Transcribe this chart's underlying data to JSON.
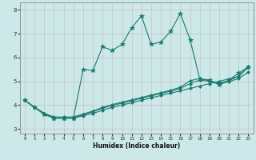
{
  "xlabel": "Humidex (Indice chaleur)",
  "bg_color": "#cce8e8",
  "grid_color_major": "#aacccc",
  "grid_color_minor": "#bcd8d8",
  "line_color": "#1a7a6e",
  "xlim": [
    -0.5,
    23.5
  ],
  "ylim": [
    2.8,
    8.3
  ],
  "xticks": [
    0,
    1,
    2,
    3,
    4,
    5,
    6,
    7,
    8,
    9,
    10,
    11,
    12,
    13,
    14,
    15,
    16,
    17,
    18,
    19,
    20,
    21,
    22,
    23
  ],
  "yticks": [
    3,
    4,
    5,
    6,
    7,
    8
  ],
  "curves": [
    {
      "x": [
        0,
        1,
        2,
        3,
        4,
        5,
        6,
        7,
        8,
        9,
        10,
        11,
        12,
        13,
        14,
        15,
        16,
        17,
        18,
        19,
        20,
        21,
        22,
        23
      ],
      "y": [
        4.2,
        3.9,
        3.6,
        3.45,
        3.45,
        3.45,
        5.5,
        5.45,
        6.45,
        6.3,
        6.55,
        7.25,
        7.75,
        6.55,
        6.65,
        7.1,
        7.85,
        6.75,
        5.1,
        5.05,
        4.85,
        5.05,
        5.35,
        5.6
      ],
      "marker": "*",
      "ms": 4
    },
    {
      "x": [
        0,
        1,
        2,
        3,
        4,
        5,
        6,
        7,
        8,
        9,
        10,
        11,
        12,
        13,
        14,
        15,
        16,
        17,
        18,
        19,
        20,
        21,
        22,
        23
      ],
      "y": [
        4.2,
        3.9,
        3.65,
        3.45,
        3.45,
        3.45,
        3.55,
        3.65,
        3.78,
        3.9,
        4.0,
        4.1,
        4.2,
        4.3,
        4.4,
        4.5,
        4.6,
        4.7,
        4.8,
        4.9,
        5.0,
        5.1,
        5.2,
        5.6
      ],
      "marker": "D",
      "ms": 2
    },
    {
      "x": [
        0,
        1,
        2,
        3,
        4,
        5,
        6,
        7,
        8,
        9,
        10,
        11,
        12,
        13,
        14,
        15,
        16,
        17,
        18,
        19,
        20,
        21,
        22,
        23
      ],
      "y": [
        4.2,
        3.9,
        3.65,
        3.45,
        3.45,
        3.45,
        3.6,
        3.72,
        3.87,
        3.98,
        4.08,
        4.18,
        4.28,
        4.38,
        4.48,
        4.58,
        4.7,
        4.9,
        5.05,
        5.0,
        4.88,
        4.98,
        5.12,
        5.38
      ],
      "marker": "D",
      "ms": 2
    },
    {
      "x": [
        0,
        1,
        2,
        3,
        4,
        5,
        6,
        7,
        8,
        9,
        10,
        11,
        12,
        13,
        14,
        15,
        16,
        17,
        18,
        19,
        20,
        21,
        22,
        23
      ],
      "y": [
        4.2,
        3.9,
        3.65,
        3.5,
        3.5,
        3.5,
        3.62,
        3.75,
        3.9,
        4.02,
        4.12,
        4.22,
        4.32,
        4.42,
        4.52,
        4.62,
        4.75,
        5.02,
        5.12,
        5.02,
        4.92,
        5.02,
        5.22,
        5.62
      ],
      "marker": "D",
      "ms": 2
    }
  ]
}
